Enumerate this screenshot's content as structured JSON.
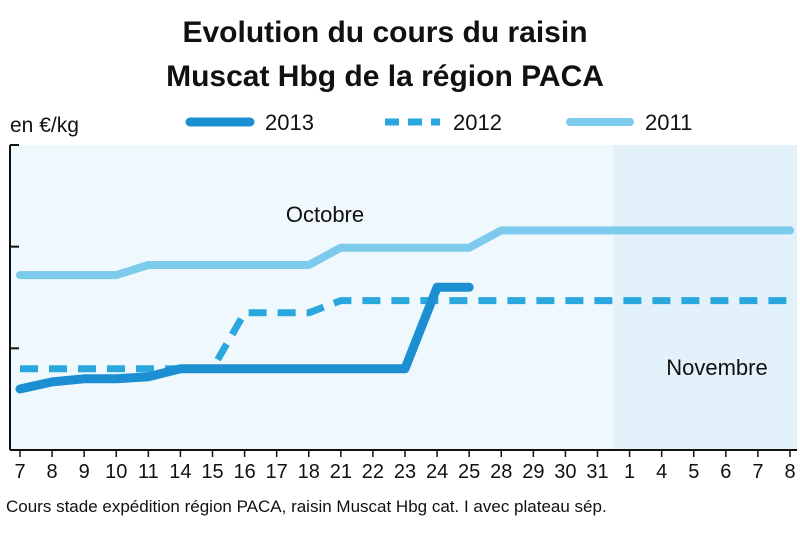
{
  "chart_data": {
    "type": "line",
    "title": "Evolution du cours du raisin",
    "subtitle": "Muscat Hbg de la région PACA",
    "ylabel": "en €/kg",
    "xlabel": "",
    "caption": "Cours stade expédition région PACA, raisin Muscat Hbg cat. I avec plateau sép.",
    "categories": [
      "7",
      "8",
      "9",
      "10",
      "11",
      "14",
      "15",
      "16",
      "17",
      "18",
      "21",
      "22",
      "23",
      "24",
      "25",
      "28",
      "29",
      "30",
      "31",
      "1",
      "4",
      "5",
      "6",
      "7",
      "8"
    ],
    "period_labels": [
      {
        "label": "Octobre",
        "start_index": 0
      },
      {
        "label": "Novembre",
        "start_index": 19
      }
    ],
    "yticks": 3,
    "ylim": [
      0,
      3
    ],
    "grid": false,
    "legend": {
      "position": "top"
    },
    "series": [
      {
        "name": "2013",
        "style": "solid-thick",
        "color": "#1b8fd2",
        "values": [
          0.6,
          0.67,
          0.7,
          0.7,
          0.72,
          0.8,
          0.8,
          0.8,
          0.8,
          0.8,
          0.8,
          0.8,
          0.8,
          1.6,
          1.6,
          null,
          null,
          null,
          null,
          null,
          null,
          null,
          null,
          null,
          null
        ]
      },
      {
        "name": "2012",
        "style": "dashed",
        "color": "#2aa7dd",
        "values": [
          0.8,
          0.8,
          0.8,
          0.8,
          0.8,
          0.8,
          0.8,
          1.35,
          1.35,
          1.35,
          1.47,
          1.47,
          1.47,
          1.47,
          1.47,
          1.47,
          1.47,
          1.47,
          1.47,
          1.47,
          1.47,
          1.47,
          1.47,
          1.47,
          1.47
        ]
      },
      {
        "name": "2011",
        "style": "solid",
        "color": "#7ccaec",
        "values": [
          1.72,
          1.72,
          1.72,
          1.72,
          1.82,
          1.82,
          1.82,
          1.82,
          1.82,
          1.82,
          1.99,
          1.99,
          1.99,
          1.99,
          1.99,
          2.16,
          2.16,
          2.16,
          2.16,
          2.16,
          2.16,
          2.16,
          2.16,
          2.16,
          2.16
        ]
      }
    ],
    "colors": {
      "plot_background": "#eff8fd",
      "november_background": "#e3f1fa",
      "axis": "#111111"
    }
  }
}
